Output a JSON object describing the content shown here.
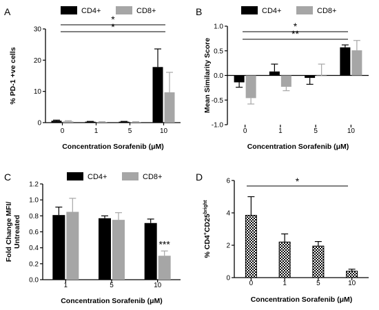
{
  "chart_data": [
    {
      "panel": "A",
      "type": "bar",
      "categories": [
        "0",
        "1",
        "5",
        "10"
      ],
      "series": [
        {
          "name": "CD4+",
          "color": "#000000",
          "values": [
            0.6,
            0.3,
            0.3,
            17.8
          ],
          "errors": [
            0.2,
            0.1,
            0.1,
            5.8
          ]
        },
        {
          "name": "CD8+",
          "color": "#a6a6a6",
          "values": [
            0.4,
            0.2,
            0.2,
            9.7
          ],
          "errors": [
            0.2,
            0.1,
            0.1,
            6.4
          ]
        }
      ],
      "xlabel": "Concentration Sorafenib (μM)",
      "ylabel": "% PD-1 +ve cells",
      "ylim": [
        0,
        30
      ],
      "yticks": [
        "0",
        "10",
        "20",
        "30"
      ],
      "legend": "top",
      "annotations": [
        {
          "label": "*",
          "from": "0",
          "to": "10"
        },
        {
          "label": "*",
          "from": "0",
          "to": "10"
        }
      ]
    },
    {
      "panel": "B",
      "type": "bar",
      "categories": [
        "0",
        "1",
        "5",
        "10"
      ],
      "series": [
        {
          "name": "CD4+",
          "color": "#000000",
          "values": [
            -0.14,
            0.08,
            -0.05,
            0.57
          ],
          "errors": [
            0.1,
            0.15,
            0.13,
            0.05
          ]
        },
        {
          "name": "CD8+",
          "color": "#a6a6a6",
          "values": [
            -0.46,
            -0.23,
            0.0,
            0.51
          ],
          "errors": [
            0.12,
            0.08,
            0.23,
            0.2
          ]
        }
      ],
      "xlabel": "Concentration Sorafenib (μM)",
      "ylabel": "Mean Similarity Score",
      "ylim": [
        -1.0,
        1.0
      ],
      "yticks": [
        "-1.0",
        "-0.5",
        "0.0",
        "0.5",
        "1.0"
      ],
      "legend": "top",
      "annotations": [
        {
          "label": "*",
          "from": "0",
          "to": "10"
        },
        {
          "label": "**",
          "from": "0",
          "to": "10"
        }
      ]
    },
    {
      "panel": "C",
      "type": "bar",
      "categories": [
        "1",
        "5",
        "10"
      ],
      "series": [
        {
          "name": "CD4+",
          "color": "#000000",
          "values": [
            0.81,
            0.77,
            0.71
          ],
          "errors": [
            0.1,
            0.03,
            0.05
          ]
        },
        {
          "name": "CD8+",
          "color": "#a6a6a6",
          "values": [
            0.85,
            0.75,
            0.3
          ],
          "errors": [
            0.17,
            0.09,
            0.06
          ]
        }
      ],
      "xlabel": "Concentration Sorafenib (μM)",
      "ylabel": "Fold Change MFI/\nUntreated",
      "ylim": [
        0,
        1.2
      ],
      "yticks": [
        "0.0",
        "0.2",
        "0.4",
        "0.6",
        "0.8",
        "1.0",
        "1.2"
      ],
      "legend": "top",
      "annotations": [
        {
          "label": "***",
          "category": "10",
          "series": "CD8+"
        }
      ]
    },
    {
      "panel": "D",
      "type": "bar",
      "categories": [
        "0",
        "1",
        "5",
        "10"
      ],
      "series": [
        {
          "name": "",
          "pattern": "checkered",
          "values": [
            3.85,
            2.2,
            1.95,
            0.4
          ],
          "errors": [
            1.15,
            0.5,
            0.28,
            0.12
          ]
        }
      ],
      "xlabel": "Concentration Sorafenib (μM)",
      "ylabel_parts": [
        "% CD4",
        "+",
        "CD25",
        "bright"
      ],
      "ylim": [
        0,
        6
      ],
      "yticks": [
        "0",
        "2",
        "4",
        "6"
      ],
      "annotations": [
        {
          "label": "*",
          "from": "0",
          "to": "10"
        }
      ]
    }
  ]
}
